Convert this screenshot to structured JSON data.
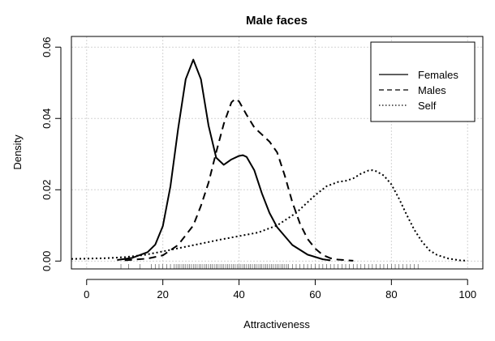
{
  "chart_data": {
    "type": "line",
    "title": "Male faces",
    "xlabel": "Attractiveness",
    "ylabel": "Density",
    "xlim": [
      -4,
      104
    ],
    "ylim": [
      -0.0022,
      0.063
    ],
    "xticks": [
      0,
      20,
      40,
      60,
      80,
      100
    ],
    "yticks": [
      0.0,
      0.02,
      0.04,
      0.06
    ],
    "xtick_labels": [
      "0",
      "20",
      "40",
      "60",
      "80",
      "100"
    ],
    "ytick_labels": [
      "0.00",
      "0.02",
      "0.04",
      "0.06"
    ],
    "grid": true,
    "legend_position": "top-right",
    "series": [
      {
        "name": "Females",
        "line_style": "solid",
        "x": [
          8,
          12,
          16,
          18,
          20,
          22,
          24,
          26,
          28,
          30,
          32,
          34,
          36,
          38,
          40,
          41,
          42,
          44,
          46,
          48,
          50,
          54,
          58,
          62,
          64
        ],
        "y": [
          0.0003,
          0.0009,
          0.0025,
          0.0046,
          0.0098,
          0.021,
          0.037,
          0.051,
          0.0565,
          0.051,
          0.038,
          0.029,
          0.027,
          0.0285,
          0.0295,
          0.0297,
          0.0292,
          0.0255,
          0.019,
          0.0135,
          0.0095,
          0.0045,
          0.0018,
          0.0005,
          0.0002
        ]
      },
      {
        "name": "Males",
        "line_style": "dashed",
        "x": [
          10,
          16,
          20,
          24,
          28,
          30,
          32,
          34,
          36,
          38,
          39,
          40,
          42,
          44,
          46,
          48,
          50,
          52,
          54,
          56,
          58,
          60,
          62,
          64,
          66,
          70
        ],
        "y": [
          0.0002,
          0.0007,
          0.0016,
          0.0045,
          0.01,
          0.0155,
          0.022,
          0.0305,
          0.0385,
          0.0445,
          0.0455,
          0.0448,
          0.041,
          0.0375,
          0.0355,
          0.0335,
          0.0305,
          0.024,
          0.0165,
          0.0105,
          0.0062,
          0.0035,
          0.0017,
          0.0008,
          0.0004,
          0.0001
        ]
      },
      {
        "name": "Self",
        "line_style": "dotted",
        "x": [
          -4,
          5,
          10,
          15,
          20,
          25,
          30,
          35,
          40,
          45,
          50,
          55,
          60,
          63,
          66,
          68,
          70,
          72,
          74,
          75,
          76,
          78,
          80,
          82,
          84,
          86,
          88,
          90,
          92,
          95,
          98,
          100
        ],
        "y": [
          0.0006,
          0.0008,
          0.0011,
          0.0017,
          0.0027,
          0.0038,
          0.0049,
          0.006,
          0.007,
          0.008,
          0.01,
          0.0135,
          0.0185,
          0.021,
          0.0222,
          0.0225,
          0.0232,
          0.0245,
          0.0254,
          0.0255,
          0.0252,
          0.024,
          0.0215,
          0.0175,
          0.013,
          0.0088,
          0.0055,
          0.003,
          0.0017,
          0.0007,
          0.0002,
          0.0001
        ]
      }
    ],
    "rug_x": [
      9,
      11,
      14,
      17,
      18,
      19,
      20,
      21,
      22,
      23,
      23.5,
      24,
      24.5,
      25,
      25.5,
      26,
      26.5,
      27,
      27.5,
      28,
      28.5,
      29,
      29.5,
      30,
      30.5,
      31,
      31.5,
      32,
      32.5,
      33,
      33.5,
      34,
      34.5,
      35,
      35.5,
      36,
      36.5,
      37,
      37.5,
      38,
      38.5,
      39,
      39.5,
      40,
      40.5,
      41,
      41.5,
      42,
      42.5,
      43,
      43.5,
      44,
      44.5,
      45,
      45.5,
      46,
      46.5,
      47,
      47.5,
      48,
      48.5,
      49,
      49.5,
      50,
      50.5,
      51,
      51.5,
      52,
      52.5,
      53,
      54,
      55,
      56,
      57,
      58,
      59,
      60,
      61,
      62,
      63,
      64,
      65,
      66,
      67,
      68,
      69,
      70,
      71,
      72,
      73,
      74,
      75,
      76,
      77,
      78,
      79,
      80,
      81,
      82,
      83,
      84,
      85,
      86,
      87
    ]
  }
}
